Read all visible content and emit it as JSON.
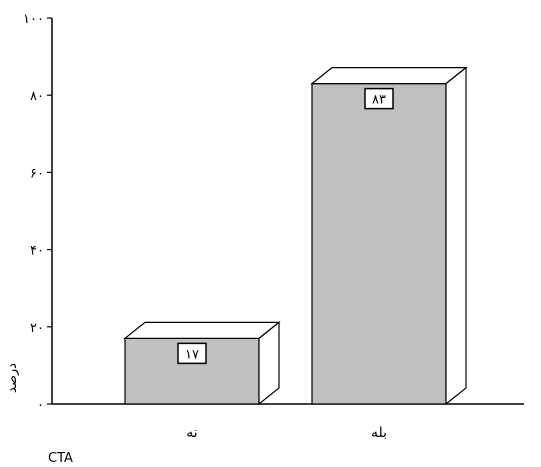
{
  "chart_data": {
    "type": "bar",
    "categories": [
      "نه",
      "بله"
    ],
    "values": [
      17,
      83
    ],
    "data_labels": [
      "۱۷",
      "۸۳"
    ],
    "ylim": [
      0,
      100
    ],
    "yticks": [
      0,
      20,
      40,
      60,
      80,
      100
    ],
    "ytick_labels": [
      "۰",
      "۲۰",
      "۴۰",
      "۶۰",
      "۸۰",
      "۱۰۰"
    ],
    "ylabel": "درصد",
    "xlabel": "CTA",
    "grid": false,
    "bar_style": "3d",
    "colors": {
      "bar_front": "#c0c0c0",
      "bar_side": "#ffffff",
      "outline": "#000000"
    }
  }
}
